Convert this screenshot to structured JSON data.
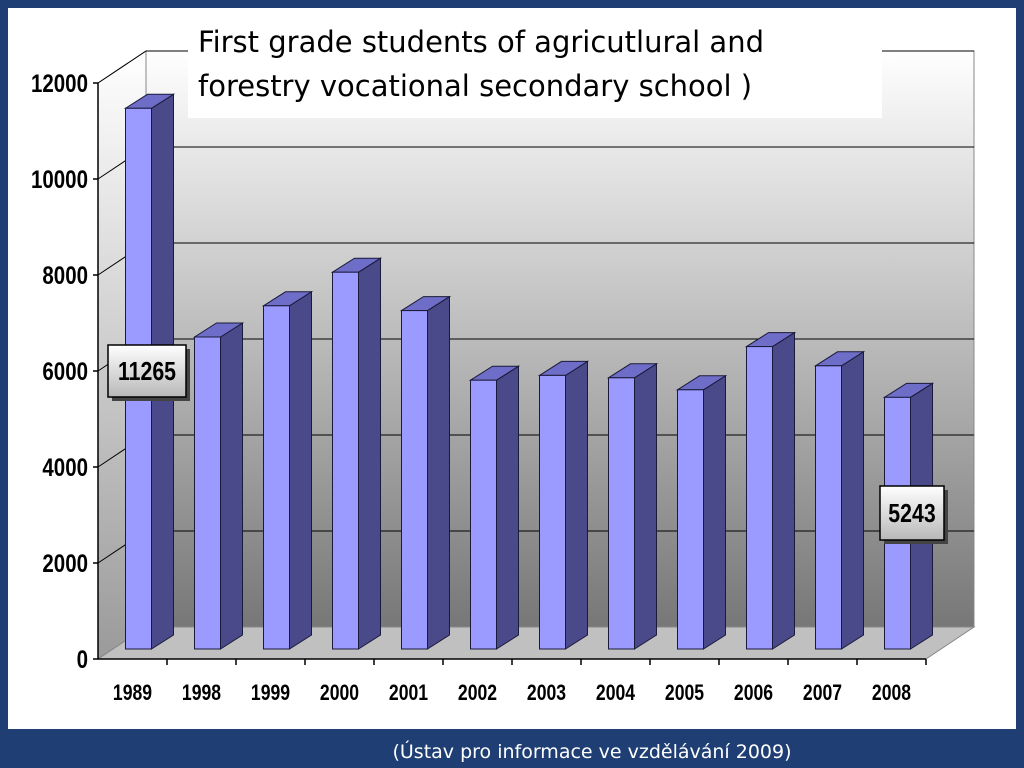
{
  "title": "First grade students of agricutlural and forestry vocational secondary school )",
  "source": "(Ústav pro informace ve vzdělávání  2009)",
  "chart_data": {
    "type": "bar",
    "style": "3d",
    "title": "First grade students of agricutlural and forestry vocational secondary school )",
    "categories": [
      "1989",
      "1998",
      "1999",
      "2000",
      "2001",
      "2002",
      "2003",
      "2004",
      "2005",
      "2006",
      "2007",
      "2008"
    ],
    "values": [
      11265,
      6500,
      7150,
      7850,
      7050,
      5600,
      5700,
      5650,
      5400,
      6300,
      5900,
      5243
    ],
    "ylim": [
      0,
      12000
    ],
    "yticks": [
      "0",
      "2000",
      "4000",
      "6000",
      "8000",
      "10000",
      "12000"
    ],
    "grid": true,
    "legend": "none",
    "callouts": [
      {
        "category": "1989",
        "label": "11265"
      },
      {
        "category": "2008",
        "label": "5243"
      }
    ],
    "colors": {
      "bar_front": "#9b9bff",
      "bar_side": "#4a4a8a",
      "bar_top": "#6e6ec8",
      "bar_edge": "#1a1a3a",
      "wall_top": "#ffffff",
      "wall_bottom": "#7a7a7a",
      "floor": "#c0c0c0",
      "frame": "#1f3f74"
    }
  }
}
